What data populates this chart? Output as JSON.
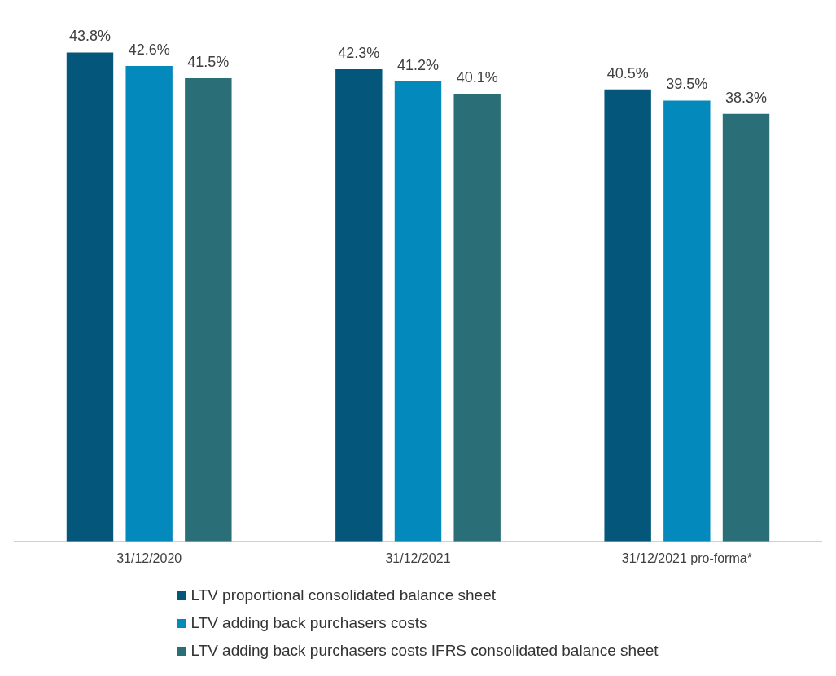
{
  "chart_data": {
    "type": "bar",
    "categories": [
      "31/12/2020",
      "31/12/2021",
      "31/12/2021 pro-forma*"
    ],
    "series": [
      {
        "name": "LTV proportional consolidated balance sheet",
        "color": "#04577b",
        "values": [
          43.8,
          42.3,
          40.5
        ],
        "value_labels": [
          "43.8%",
          "42.3%",
          "40.5%"
        ]
      },
      {
        "name": "LTV adding back purchasers costs",
        "color": "#0489bc",
        "values": [
          42.6,
          41.2,
          39.5
        ],
        "value_labels": [
          "42.6%",
          "41.2%",
          "39.5%"
        ]
      },
      {
        "name": "LTV adding back purchasers costs IFRS consolidated balance sheet",
        "color": "#2a6f77",
        "values": [
          41.5,
          40.1,
          38.3
        ],
        "value_labels": [
          "41.5%",
          "40.1%",
          "38.3%"
        ]
      }
    ],
    "tick_labels": "x",
    "grid": false,
    "legend": "bottom"
  }
}
